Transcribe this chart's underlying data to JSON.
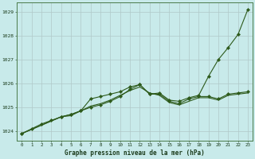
{
  "title": "Graphe pression niveau de la mer (hPa)",
  "background_color": "#c8eaea",
  "grid_color": "#b0c8c8",
  "line_color": "#2d5a1b",
  "xlim": [
    -0.5,
    23.5
  ],
  "ylim": [
    1023.6,
    1029.4
  ],
  "yticks": [
    1024,
    1025,
    1026,
    1027,
    1028,
    1029
  ],
  "xticks": [
    0,
    1,
    2,
    3,
    4,
    5,
    6,
    7,
    8,
    9,
    10,
    11,
    12,
    13,
    14,
    15,
    16,
    17,
    18,
    19,
    20,
    21,
    22,
    23
  ],
  "series": [
    {
      "x": [
        0,
        1,
        2,
        3,
        4,
        5,
        6,
        7,
        8,
        9,
        10,
        11,
        12,
        13,
        14,
        15,
        16,
        17,
        18,
        19,
        20,
        21,
        22,
        23
      ],
      "y": [
        1023.9,
        1024.1,
        1024.3,
        1024.45,
        1024.6,
        1024.7,
        1024.85,
        1025.0,
        1025.1,
        1025.25,
        1025.45,
        1025.75,
        1025.95,
        1025.55,
        1025.6,
        1025.3,
        1025.25,
        1025.4,
        1025.5,
        1026.3,
        1027.0,
        1027.5,
        1028.05,
        1029.1
      ],
      "marker": true
    },
    {
      "x": [
        0,
        4,
        5,
        6,
        7,
        8,
        9,
        10,
        11,
        12,
        13,
        14,
        15,
        16,
        17,
        18,
        19,
        20,
        21,
        22,
        23
      ],
      "y": [
        1023.9,
        1024.6,
        1024.7,
        1024.85,
        1025.35,
        1025.45,
        1025.55,
        1025.65,
        1025.85,
        1025.95,
        1025.55,
        1025.55,
        1025.25,
        1025.15,
        1025.35,
        1025.45,
        1025.45,
        1025.35,
        1025.55,
        1025.6,
        1025.65
      ],
      "marker": true
    },
    {
      "x": [
        0,
        4,
        5,
        6,
        7,
        8,
        9,
        10,
        11,
        12,
        13,
        14,
        15,
        16,
        17,
        18,
        19,
        20,
        21,
        22,
        23
      ],
      "y": [
        1023.9,
        1024.6,
        1024.65,
        1024.85,
        1025.05,
        1025.15,
        1025.3,
        1025.5,
        1025.7,
        1025.85,
        1025.6,
        1025.5,
        1025.2,
        1025.1,
        1025.25,
        1025.4,
        1025.4,
        1025.3,
        1025.5,
        1025.55,
        1025.6
      ],
      "marker": false
    }
  ]
}
